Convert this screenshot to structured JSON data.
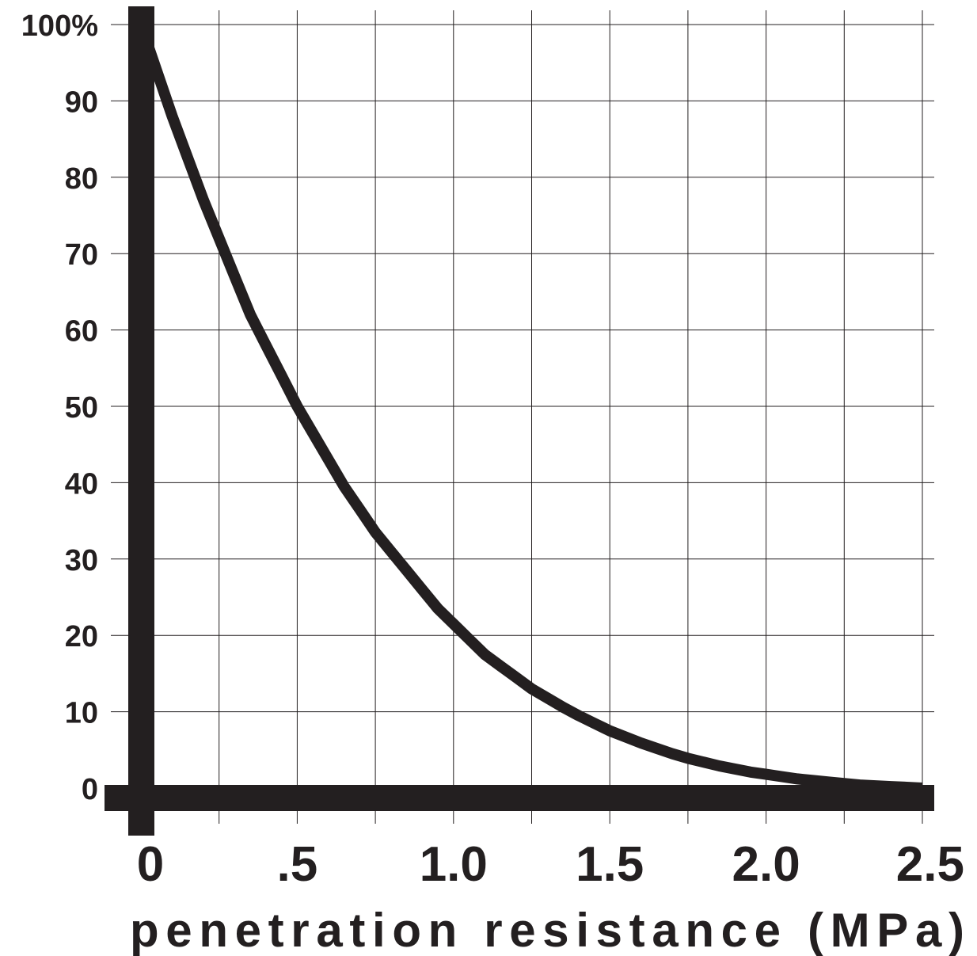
{
  "chart_data": {
    "type": "line",
    "title": "",
    "xlabel": "penetration resistance (MPa)",
    "ylabel": "",
    "xlim": [
      0,
      2.5
    ],
    "ylim": [
      0,
      100
    ],
    "grid": true,
    "x_ticks": [
      {
        "value": 0,
        "label": "0"
      },
      {
        "value": 0.5,
        "label": ".5"
      },
      {
        "value": 1.0,
        "label": "1.0"
      },
      {
        "value": 1.5,
        "label": "1.5"
      },
      {
        "value": 2.0,
        "label": "2.0"
      },
      {
        "value": 2.5,
        "label": "2.5"
      }
    ],
    "y_ticks": [
      {
        "value": 100,
        "label": "100%"
      },
      {
        "value": 90,
        "label": "90"
      },
      {
        "value": 80,
        "label": "80"
      },
      {
        "value": 70,
        "label": "70"
      },
      {
        "value": 60,
        "label": "60"
      },
      {
        "value": 50,
        "label": "50"
      },
      {
        "value": 40,
        "label": "40"
      },
      {
        "value": 30,
        "label": "30"
      },
      {
        "value": 20,
        "label": "20"
      },
      {
        "value": 10,
        "label": "10"
      },
      {
        "value": 0,
        "label": "0"
      }
    ],
    "x_grid_values": [
      0,
      0.25,
      0.5,
      0.75,
      1.0,
      1.25,
      1.5,
      1.75,
      2.0,
      2.25,
      2.5
    ],
    "series": [
      {
        "color": "#231f20",
        "x": [
          0,
          0.05,
          0.1,
          0.15,
          0.2,
          0.25,
          0.3,
          0.35,
          0.4,
          0.45,
          0.5,
          0.55,
          0.6,
          0.65,
          0.7,
          0.75,
          0.8,
          0.85,
          0.9,
          0.95,
          1.0,
          1.05,
          1.1,
          1.15,
          1.2,
          1.25,
          1.3,
          1.35,
          1.4,
          1.45,
          1.5,
          1.55,
          1.6,
          1.65,
          1.7,
          1.75,
          1.8,
          1.85,
          1.9,
          1.95,
          2.0,
          2.05,
          2.1,
          2.15,
          2.2,
          2.25,
          2.3,
          2.35,
          2.4,
          2.45,
          2.5
        ],
        "y": [
          100,
          94,
          88,
          82.5,
          77,
          72,
          67,
          62,
          58,
          54,
          50,
          46.5,
          43,
          39.5,
          36.5,
          33.5,
          31,
          28.5,
          26,
          23.5,
          21.5,
          19.5,
          17.5,
          16,
          14.5,
          13,
          11.8,
          10.6,
          9.5,
          8.5,
          7.5,
          6.7,
          5.9,
          5.2,
          4.5,
          3.9,
          3.4,
          2.9,
          2.5,
          2.1,
          1.8,
          1.5,
          1.2,
          1.0,
          0.8,
          0.6,
          0.4,
          0.3,
          0.2,
          0.1,
          0
        ]
      }
    ]
  }
}
